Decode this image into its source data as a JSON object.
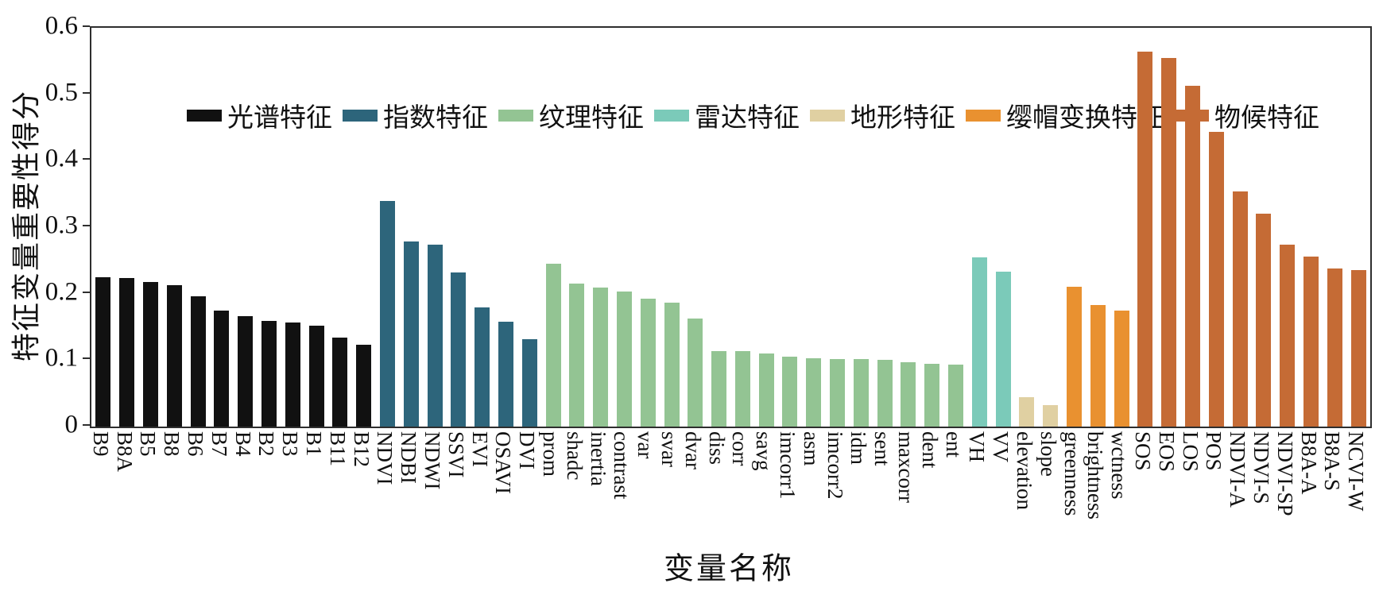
{
  "figure": {
    "xlabel": "变量名称",
    "ylabel": "特征变量重要性得分"
  },
  "chart_data": {
    "type": "bar",
    "title": "",
    "xlabel": "变量名称",
    "ylabel": "特征变量重要性得分",
    "ylim": [
      0,
      0.6
    ],
    "yticks": [
      0,
      0.1,
      0.2,
      0.3,
      0.4,
      0.5,
      0.6
    ],
    "grid": false,
    "legend_position": "top-inside-horizontal",
    "series": [
      {
        "name": "光谱特征",
        "color": "#111111",
        "categories": [
          "B9",
          "B8A",
          "B5",
          "B8",
          "B6",
          "B7",
          "B4",
          "B2",
          "B3",
          "B1",
          "B11",
          "B12"
        ],
        "values": [
          0.225,
          0.224,
          0.218,
          0.213,
          0.196,
          0.175,
          0.166,
          0.159,
          0.157,
          0.152,
          0.134,
          0.123
        ]
      },
      {
        "name": "指数特征",
        "color": "#2d657b",
        "categories": [
          "NDVI",
          "NDBI",
          "NDWI",
          "SSVI",
          "EVI",
          "OSAVI",
          "DVI"
        ],
        "values": [
          0.34,
          0.279,
          0.274,
          0.232,
          0.179,
          0.158,
          0.131
        ]
      },
      {
        "name": "纹理特征",
        "color": "#93c493",
        "categories": [
          "prom",
          "shadc",
          "inertia",
          "contrast",
          "var",
          "svar",
          "dvar",
          "diss",
          "corr",
          "savg",
          "imcorr1",
          "asm",
          "imcorr2",
          "idm",
          "sent",
          "maxcorr",
          "dent",
          "ent"
        ],
        "values": [
          0.245,
          0.215,
          0.209,
          0.203,
          0.192,
          0.187,
          0.162,
          0.114,
          0.113,
          0.11,
          0.105,
          0.103,
          0.102,
          0.101,
          0.1,
          0.097,
          0.095,
          0.093
        ]
      },
      {
        "name": "雷达特征",
        "color": "#7bcab9",
        "categories": [
          "VH",
          "VV"
        ],
        "values": [
          0.254,
          0.233
        ]
      },
      {
        "name": "地形特征",
        "color": "#e0d0a2",
        "categories": [
          "elevation",
          "slope"
        ],
        "values": [
          0.044,
          0.032
        ]
      },
      {
        "name": "缨帽变换特征",
        "color": "#e99130",
        "categories": [
          "greenness",
          "brightness",
          "wctness"
        ],
        "values": [
          0.21,
          0.183,
          0.175
        ]
      },
      {
        "name": "物候特征",
        "color": "#c56b35",
        "categories": [
          "SOS",
          "EOS",
          "LOS",
          "POS",
          "NDVI-A",
          "NDVI-S",
          "NDVI-SP",
          "B8A-A",
          "B8A-S",
          "NCVI-W"
        ],
        "values": [
          0.564,
          0.554,
          0.513,
          0.443,
          0.354,
          0.32,
          0.274,
          0.256,
          0.238,
          0.235
        ]
      }
    ]
  }
}
